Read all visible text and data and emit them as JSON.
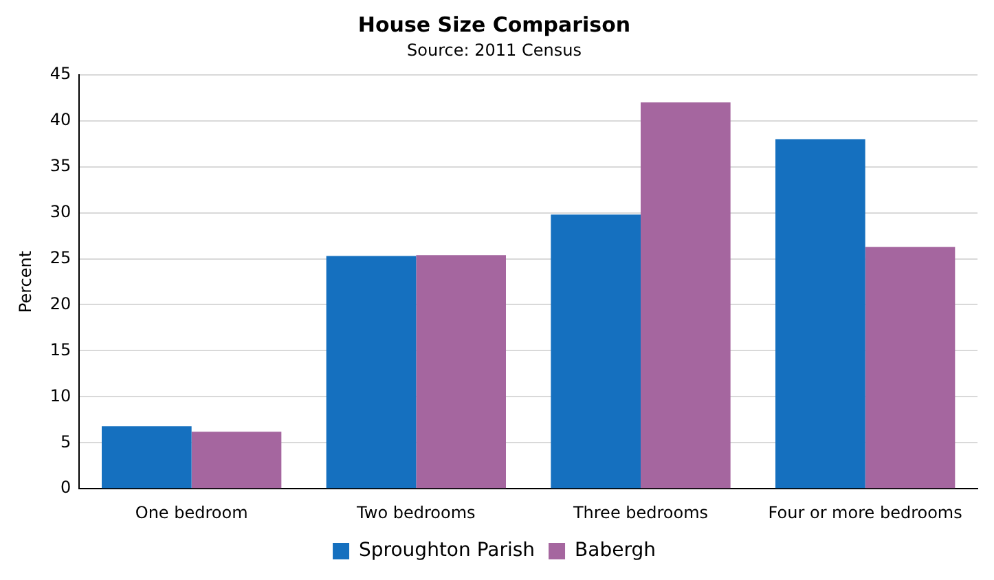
{
  "chart_data": {
    "type": "bar",
    "title": "House Size Comparison",
    "subtitle": "Source: 2011 Census",
    "ylabel": "Percent",
    "categories": [
      "One bedroom",
      "Two bedrooms",
      "Three bedrooms",
      "Four or more bedrooms"
    ],
    "series": [
      {
        "name": "Sproughton Parish",
        "color": "#1570bf",
        "values": [
          6.8,
          25.3,
          29.8,
          38.0
        ]
      },
      {
        "name": "Babergh",
        "color": "#a5669f",
        "values": [
          6.2,
          25.4,
          42.0,
          26.3
        ]
      }
    ],
    "ylim": [
      0,
      45
    ],
    "yticks": [
      0,
      5,
      10,
      15,
      20,
      25,
      30,
      35,
      40,
      45
    ],
    "grid": "y",
    "legend": "bottom"
  }
}
